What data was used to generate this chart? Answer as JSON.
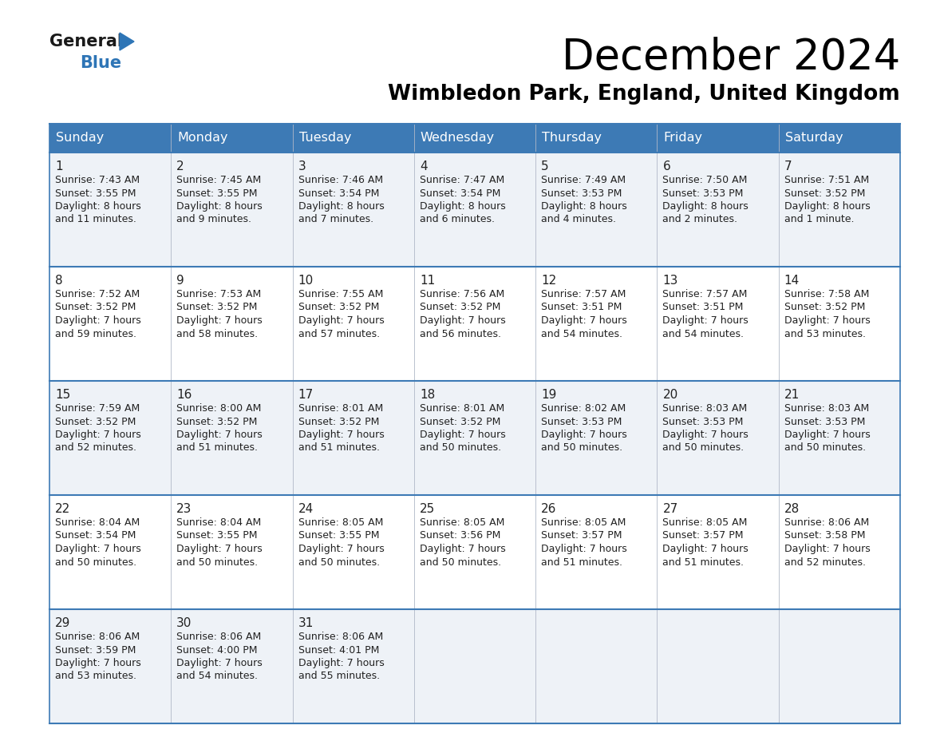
{
  "title": "December 2024",
  "subtitle": "Wimbledon Park, England, United Kingdom",
  "header_color": "#3d7ab5",
  "header_text_color": "#ffffff",
  "row_color_odd": "#eef2f7",
  "row_color_even": "#ffffff",
  "border_color": "#3d7ab5",
  "text_color": "#222222",
  "day_headers": [
    "Sunday",
    "Monday",
    "Tuesday",
    "Wednesday",
    "Thursday",
    "Friday",
    "Saturday"
  ],
  "weeks": [
    [
      {
        "day": "1",
        "sunrise": "7:43 AM",
        "sunset": "3:55 PM",
        "daylight": "8 hours",
        "daylight2": "and 11 minutes."
      },
      {
        "day": "2",
        "sunrise": "7:45 AM",
        "sunset": "3:55 PM",
        "daylight": "8 hours",
        "daylight2": "and 9 minutes."
      },
      {
        "day": "3",
        "sunrise": "7:46 AM",
        "sunset": "3:54 PM",
        "daylight": "8 hours",
        "daylight2": "and 7 minutes."
      },
      {
        "day": "4",
        "sunrise": "7:47 AM",
        "sunset": "3:54 PM",
        "daylight": "8 hours",
        "daylight2": "and 6 minutes."
      },
      {
        "day": "5",
        "sunrise": "7:49 AM",
        "sunset": "3:53 PM",
        "daylight": "8 hours",
        "daylight2": "and 4 minutes."
      },
      {
        "day": "6",
        "sunrise": "7:50 AM",
        "sunset": "3:53 PM",
        "daylight": "8 hours",
        "daylight2": "and 2 minutes."
      },
      {
        "day": "7",
        "sunrise": "7:51 AM",
        "sunset": "3:52 PM",
        "daylight": "8 hours",
        "daylight2": "and 1 minute."
      }
    ],
    [
      {
        "day": "8",
        "sunrise": "7:52 AM",
        "sunset": "3:52 PM",
        "daylight": "7 hours",
        "daylight2": "and 59 minutes."
      },
      {
        "day": "9",
        "sunrise": "7:53 AM",
        "sunset": "3:52 PM",
        "daylight": "7 hours",
        "daylight2": "and 58 minutes."
      },
      {
        "day": "10",
        "sunrise": "7:55 AM",
        "sunset": "3:52 PM",
        "daylight": "7 hours",
        "daylight2": "and 57 minutes."
      },
      {
        "day": "11",
        "sunrise": "7:56 AM",
        "sunset": "3:52 PM",
        "daylight": "7 hours",
        "daylight2": "and 56 minutes."
      },
      {
        "day": "12",
        "sunrise": "7:57 AM",
        "sunset": "3:51 PM",
        "daylight": "7 hours",
        "daylight2": "and 54 minutes."
      },
      {
        "day": "13",
        "sunrise": "7:57 AM",
        "sunset": "3:51 PM",
        "daylight": "7 hours",
        "daylight2": "and 54 minutes."
      },
      {
        "day": "14",
        "sunrise": "7:58 AM",
        "sunset": "3:52 PM",
        "daylight": "7 hours",
        "daylight2": "and 53 minutes."
      }
    ],
    [
      {
        "day": "15",
        "sunrise": "7:59 AM",
        "sunset": "3:52 PM",
        "daylight": "7 hours",
        "daylight2": "and 52 minutes."
      },
      {
        "day": "16",
        "sunrise": "8:00 AM",
        "sunset": "3:52 PM",
        "daylight": "7 hours",
        "daylight2": "and 51 minutes."
      },
      {
        "day": "17",
        "sunrise": "8:01 AM",
        "sunset": "3:52 PM",
        "daylight": "7 hours",
        "daylight2": "and 51 minutes."
      },
      {
        "day": "18",
        "sunrise": "8:01 AM",
        "sunset": "3:52 PM",
        "daylight": "7 hours",
        "daylight2": "and 50 minutes."
      },
      {
        "day": "19",
        "sunrise": "8:02 AM",
        "sunset": "3:53 PM",
        "daylight": "7 hours",
        "daylight2": "and 50 minutes."
      },
      {
        "day": "20",
        "sunrise": "8:03 AM",
        "sunset": "3:53 PM",
        "daylight": "7 hours",
        "daylight2": "and 50 minutes."
      },
      {
        "day": "21",
        "sunrise": "8:03 AM",
        "sunset": "3:53 PM",
        "daylight": "7 hours",
        "daylight2": "and 50 minutes."
      }
    ],
    [
      {
        "day": "22",
        "sunrise": "8:04 AM",
        "sunset": "3:54 PM",
        "daylight": "7 hours",
        "daylight2": "and 50 minutes."
      },
      {
        "day": "23",
        "sunrise": "8:04 AM",
        "sunset": "3:55 PM",
        "daylight": "7 hours",
        "daylight2": "and 50 minutes."
      },
      {
        "day": "24",
        "sunrise": "8:05 AM",
        "sunset": "3:55 PM",
        "daylight": "7 hours",
        "daylight2": "and 50 minutes."
      },
      {
        "day": "25",
        "sunrise": "8:05 AM",
        "sunset": "3:56 PM",
        "daylight": "7 hours",
        "daylight2": "and 50 minutes."
      },
      {
        "day": "26",
        "sunrise": "8:05 AM",
        "sunset": "3:57 PM",
        "daylight": "7 hours",
        "daylight2": "and 51 minutes."
      },
      {
        "day": "27",
        "sunrise": "8:05 AM",
        "sunset": "3:57 PM",
        "daylight": "7 hours",
        "daylight2": "and 51 minutes."
      },
      {
        "day": "28",
        "sunrise": "8:06 AM",
        "sunset": "3:58 PM",
        "daylight": "7 hours",
        "daylight2": "and 52 minutes."
      }
    ],
    [
      {
        "day": "29",
        "sunrise": "8:06 AM",
        "sunset": "3:59 PM",
        "daylight": "7 hours",
        "daylight2": "and 53 minutes."
      },
      {
        "day": "30",
        "sunrise": "8:06 AM",
        "sunset": "4:00 PM",
        "daylight": "7 hours",
        "daylight2": "and 54 minutes."
      },
      {
        "day": "31",
        "sunrise": "8:06 AM",
        "sunset": "4:01 PM",
        "daylight": "7 hours",
        "daylight2": "and 55 minutes."
      },
      null,
      null,
      null,
      null
    ]
  ],
  "fig_width": 11.88,
  "fig_height": 9.18,
  "dpi": 100,
  "title_fontsize": 38,
  "subtitle_fontsize": 19,
  "header_fontsize": 11.5,
  "day_num_fontsize": 11,
  "cell_text_fontsize": 9,
  "logo_general_fontsize": 15,
  "logo_blue_fontsize": 15,
  "logo_arrow_color": "#2e75b6",
  "logo_general_color": "#1a1a1a"
}
